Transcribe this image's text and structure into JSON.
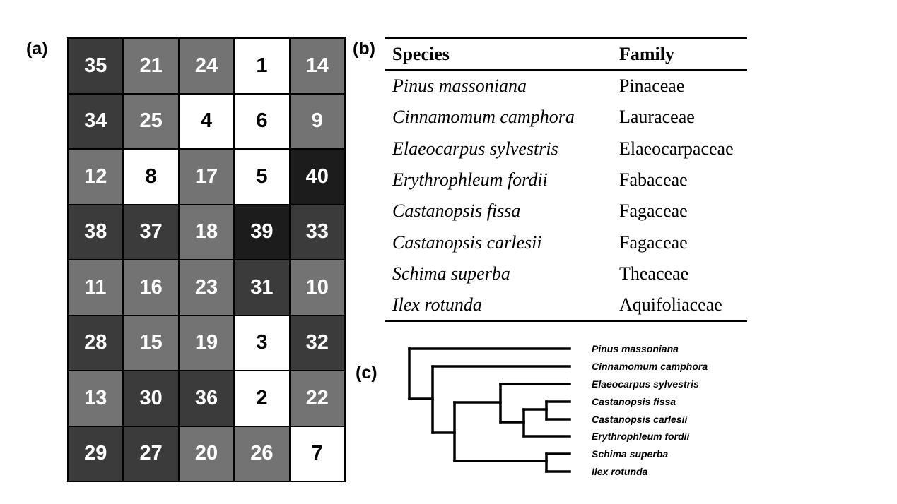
{
  "panels": {
    "a": "(a)",
    "b": "(b)",
    "c": "(c)"
  },
  "grid": {
    "rows": [
      [
        35,
        21,
        24,
        1,
        14
      ],
      [
        34,
        25,
        4,
        6,
        9
      ],
      [
        12,
        8,
        17,
        5,
        40
      ],
      [
        38,
        37,
        18,
        39,
        33
      ],
      [
        11,
        16,
        23,
        31,
        10
      ],
      [
        28,
        15,
        19,
        3,
        32
      ],
      [
        13,
        30,
        36,
        2,
        22
      ],
      [
        29,
        27,
        20,
        26,
        7
      ]
    ],
    "shades": {
      "white": "#ffffff",
      "gray": "#737373",
      "dark": "#3b3b3b",
      "darkest": "#1c1c1c"
    }
  },
  "table": {
    "headers": {
      "species": "Species",
      "family": "Family"
    },
    "rows": [
      {
        "species": "Pinus massoniana",
        "family": "Pinaceae"
      },
      {
        "species": "Cinnamomum camphora",
        "family": "Lauraceae"
      },
      {
        "species": "Elaeocarpus sylvestris",
        "family": "Elaeocarpaceae"
      },
      {
        "species": "Erythrophleum fordii",
        "family": "Fabaceae"
      },
      {
        "species": "Castanopsis fissa",
        "family": "Fagaceae"
      },
      {
        "species": "Castanopsis carlesii",
        "family": "Fagaceae"
      },
      {
        "species": "Schima superba",
        "family": "Theaceae"
      },
      {
        "species": "Ilex rotunda",
        "family": "Aquifoliaceae"
      }
    ]
  },
  "tree": {
    "tips": [
      "Pinus massoniana",
      "Cinnamomum camphora",
      "Elaeocarpus sylvestris",
      "Castanopsis fissa",
      "Castanopsis carlesii",
      "Erythrophleum fordii",
      "Schima superba",
      "Ilex rotunda"
    ]
  }
}
